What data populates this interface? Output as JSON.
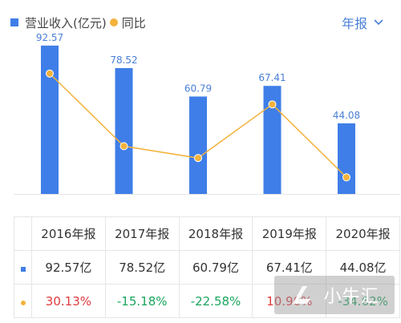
{
  "legend": {
    "revenue_label": "营业收入(亿元)",
    "yoy_label": "同比"
  },
  "period_selector": {
    "label": "年报"
  },
  "colors": {
    "bar": "#3f7ee8",
    "line": "#f3b23b",
    "positive": "#e0393e",
    "negative": "#1aa55e",
    "grid": "#e6e6e6"
  },
  "chart_data": {
    "type": "bar",
    "categories": [
      "2016年报",
      "2017年报",
      "2018年报",
      "2019年报",
      "2020年报"
    ],
    "series": [
      {
        "name": "营业收入(亿元)",
        "type": "bar",
        "values": [
          92.57,
          78.52,
          60.79,
          67.41,
          44.08
        ]
      },
      {
        "name": "同比",
        "type": "line",
        "values": [
          30.13,
          -15.18,
          -22.58,
          10.9,
          -34.62
        ]
      }
    ],
    "data_labels": [
      "92.57",
      "78.52",
      "60.79",
      "67.41",
      "44.08"
    ],
    "ylim": [
      0,
      100
    ],
    "yoy_range": [
      -40,
      40
    ],
    "legend_position": "top-left"
  },
  "table": {
    "headers": [
      "2016年报",
      "2017年报",
      "2018年报",
      "2019年报",
      "2020年报"
    ],
    "revenue_row": [
      "92.57亿",
      "78.52亿",
      "60.79亿",
      "67.41亿",
      "44.08亿"
    ],
    "yoy_row": [
      "30.13%",
      "-15.18%",
      "-22.58%",
      "10.90%",
      "-34.62%"
    ]
  },
  "watermark": {
    "text": "小牛汇"
  }
}
